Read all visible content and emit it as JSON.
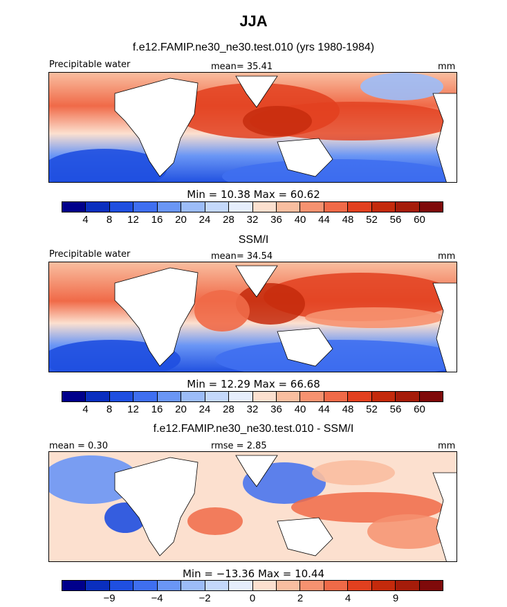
{
  "title": "JJA",
  "panels": [
    {
      "subtitle": "f.e12.FAMIP.ne30_ne30.test.010 (yrs 1980-1984)",
      "left_label": "Precipitable water",
      "center_label": "mean=  35.41",
      "units": "mm",
      "stats": "Min =   10.38  Max =   60.62",
      "colorbar": {
        "colors": [
          "#00008b",
          "#0a2fbf",
          "#1f4fe0",
          "#3f6ff0",
          "#6a96f5",
          "#9cbcf8",
          "#c4d8fb",
          "#e6eefc",
          "#fce0cf",
          "#f9bea0",
          "#f69270",
          "#f06a48",
          "#e2401f",
          "#c42a0c",
          "#a51c0a",
          "#7f0a0a"
        ],
        "ticks": [
          "4",
          "8",
          "12",
          "16",
          "20",
          "24",
          "28",
          "32",
          "36",
          "40",
          "44",
          "48",
          "52",
          "56",
          "60"
        ]
      }
    },
    {
      "subtitle": "SSM/I",
      "left_label": "Precipitable water",
      "center_label": "mean=  34.54",
      "units": "mm",
      "stats": "Min =   12.29  Max =   66.68",
      "colorbar": {
        "colors": [
          "#00008b",
          "#0a2fbf",
          "#1f4fe0",
          "#3f6ff0",
          "#6a96f5",
          "#9cbcf8",
          "#c4d8fb",
          "#e6eefc",
          "#fce0cf",
          "#f9bea0",
          "#f69270",
          "#f06a48",
          "#e2401f",
          "#c42a0c",
          "#a51c0a",
          "#7f0a0a"
        ],
        "ticks": [
          "4",
          "8",
          "12",
          "16",
          "20",
          "24",
          "28",
          "32",
          "36",
          "40",
          "44",
          "48",
          "52",
          "56",
          "60"
        ]
      }
    },
    {
      "subtitle": "f.e12.FAMIP.ne30_ne30.test.010 - SSM/I",
      "left_label": "mean =   0.30",
      "center_label": "rmse =   2.85",
      "units": "mm",
      "stats": "Min = −13.36  Max =   10.44",
      "colorbar": {
        "colors": [
          "#00008b",
          "#0a2fbf",
          "#1f4fe0",
          "#3f6ff0",
          "#6a96f5",
          "#9cbcf8",
          "#c4d8fb",
          "#e6eefc",
          "#fce0cf",
          "#f9bea0",
          "#f69270",
          "#f06a48",
          "#e2401f",
          "#c42a0c",
          "#a51c0a",
          "#7f0a0a"
        ],
        "ticks": [
          "−9",
          "−4",
          "−2",
          "0",
          "2",
          "4",
          "9"
        ]
      }
    }
  ]
}
